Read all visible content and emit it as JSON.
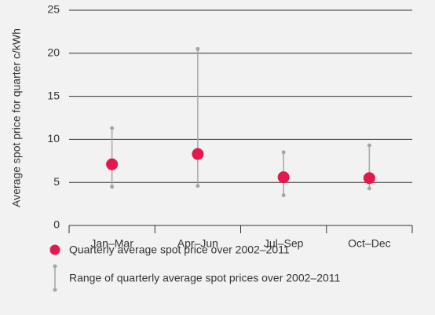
{
  "chart_data": {
    "type": "range_dot",
    "y_label": "Average spot price for quarter c/kWh",
    "categories": [
      "Jan–Mar",
      "Apr–Jun",
      "Jul–Sep",
      "Oct–Dec"
    ],
    "series": [
      {
        "name": "Quarterly average spot price over 2002–2011",
        "color": "#e5174d",
        "values": [
          7.1,
          8.3,
          5.6,
          5.5
        ]
      },
      {
        "name": "Range of quarterly average spot prices over 2002–2011",
        "color": "#a6a6a6",
        "low": [
          4.5,
          4.6,
          3.5,
          4.3
        ],
        "high": [
          11.3,
          20.5,
          8.5,
          9.3
        ]
      }
    ],
    "ylim": [
      0,
      25
    ],
    "yticks": [
      0,
      5,
      10,
      15,
      20,
      25
    ],
    "grid": true
  }
}
